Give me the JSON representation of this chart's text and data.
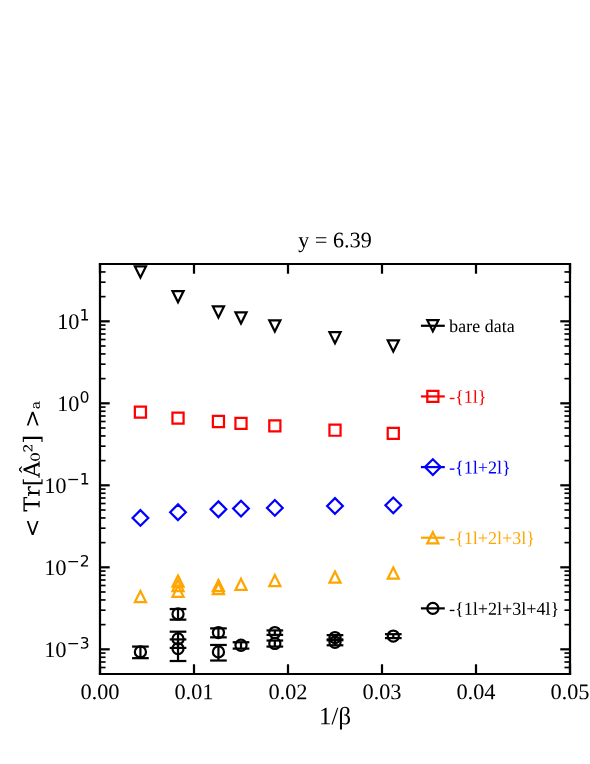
{
  "chart_data": {
    "type": "scatter",
    "title": "y = 6.39",
    "xlabel": "1/β",
    "ylabel": "< Tr[Â₀²] >ₐ",
    "log": "y",
    "xlim": [
      0,
      0.05
    ],
    "xticks": [
      {
        "value": 0,
        "label": "0.00"
      },
      {
        "value": 0.01,
        "label": "0.01"
      },
      {
        "value": 0.02,
        "label": "0.02"
      },
      {
        "value": 0.03,
        "label": "0.03"
      },
      {
        "value": 0.04,
        "label": "0.04"
      },
      {
        "value": 0.05,
        "label": "0.05"
      }
    ],
    "ylim": [
      0.0005,
      50
    ],
    "yticks": [
      {
        "value": 0.001,
        "label": "10$^{−3}$"
      },
      {
        "value": 0.01,
        "label": "10$^{−2}$"
      },
      {
        "value": 0.1,
        "label": "10$^{−1}$"
      },
      {
        "value": 1,
        "label": "10$^{0}$"
      },
      {
        "value": 10,
        "label": "10$^{1}$"
      }
    ],
    "grid": false,
    "legend": "right",
    "series": [
      {
        "name": "bare data",
        "color": "#000000",
        "marker": "triangle_down",
        "x": [
          0.0043,
          0.0083,
          0.0126,
          0.015,
          0.0186,
          0.025,
          0.0312
        ],
        "values": [
          40,
          20,
          13,
          11,
          8.8,
          6.3,
          5.0
        ]
      },
      {
        "name": "-{1l}",
        "color": "#ff0000",
        "marker": "square",
        "x": [
          0.0043,
          0.0083,
          0.0126,
          0.015,
          0.0186,
          0.025,
          0.0312
        ],
        "values": [
          0.78,
          0.66,
          0.6,
          0.57,
          0.53,
          0.47,
          0.43
        ]
      },
      {
        "name": "-{1l+2l}",
        "color": "#0000ff",
        "marker": "diamond",
        "x": [
          0.0043,
          0.0083,
          0.0126,
          0.015,
          0.0186,
          0.025,
          0.0312
        ],
        "values": [
          0.04,
          0.047,
          0.051,
          0.052,
          0.053,
          0.056,
          0.057
        ]
      },
      {
        "name": "-{1l+2l+3l}",
        "color": "#ffa500",
        "marker": "triangle",
        "x": [
          0.0043,
          0.0083,
          0.0083,
          0.0083,
          0.0126,
          0.0126,
          0.015,
          0.0186,
          0.025,
          0.0312
        ],
        "values": [
          0.0044,
          0.0068,
          0.006,
          0.0051,
          0.006,
          0.0055,
          0.0062,
          0.0069,
          0.0076,
          0.0085
        ]
      },
      {
        "name": "-{1l+2l+3l+4l}",
        "color": "#000000",
        "marker": "circle",
        "x": [
          0.0043,
          0.0083,
          0.0083,
          0.0083,
          0.0126,
          0.0126,
          0.015,
          0.0186,
          0.0186,
          0.025,
          0.025,
          0.0312
        ],
        "values": [
          0.00093,
          0.0027,
          0.00134,
          0.00102,
          0.0016,
          0.00093,
          0.00112,
          0.0016,
          0.00118,
          0.00139,
          0.00122,
          0.00145
        ],
        "errors": [
          0.00015,
          0.0004,
          0.0003,
          0.0003,
          0.0002,
          0.0002,
          0.0001,
          0.0001,
          0.0001,
          0.0001,
          0.0001,
          8e-05
        ]
      }
    ]
  }
}
